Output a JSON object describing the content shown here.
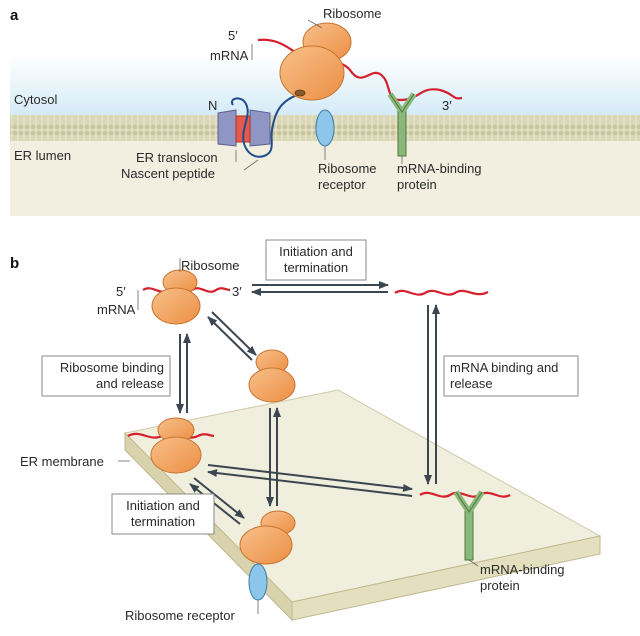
{
  "colors": {
    "ribosome": "#f2a25e",
    "ribosome_stroke": "#c8742f",
    "mrna": "#d5202e",
    "peptide": "#1f4e8c",
    "receptor": "#8cc6ea",
    "binding_protein": "#8ab77a",
    "translocon": "#8f96c4",
    "membrane": "#d9d6b8",
    "lumen": "#f2efe0",
    "cytosol": "#dff0f8",
    "arrow": "#3b4650"
  },
  "panel_a": {
    "panel_label": "a",
    "ribosome": "Ribosome",
    "five_prime": "5′",
    "mrna": "mRNA",
    "three_prime": "3′",
    "cytosol": "Cytosol",
    "er_lumen": "ER lumen",
    "n_terminus": "N",
    "er_translocon": "ER translocon",
    "nascent_peptide": "Nascent peptide",
    "ribosome_receptor_1": "Ribosome",
    "ribosome_receptor_2": "receptor",
    "binding_protein_1": "mRNA-binding",
    "binding_protein_2": "protein"
  },
  "panel_b": {
    "panel_label": "b",
    "ribosome": "Ribosome",
    "five_prime": "5′",
    "three_prime": "3′",
    "mrna": "mRNA",
    "init_term_top_1": "Initiation and",
    "init_term_top_2": "termination",
    "ribosome_binding_1": "Ribosome binding",
    "ribosome_binding_2": "and release",
    "mrna_binding_1": "mRNA binding and",
    "mrna_binding_2": "release",
    "er_membrane": "ER membrane",
    "init_term_bottom_1": "Initiation and",
    "init_term_bottom_2": "termination",
    "ribosome_receptor": "Ribosome receptor",
    "binding_protein_1": "mRNA-binding",
    "binding_protein_2": "protein"
  }
}
